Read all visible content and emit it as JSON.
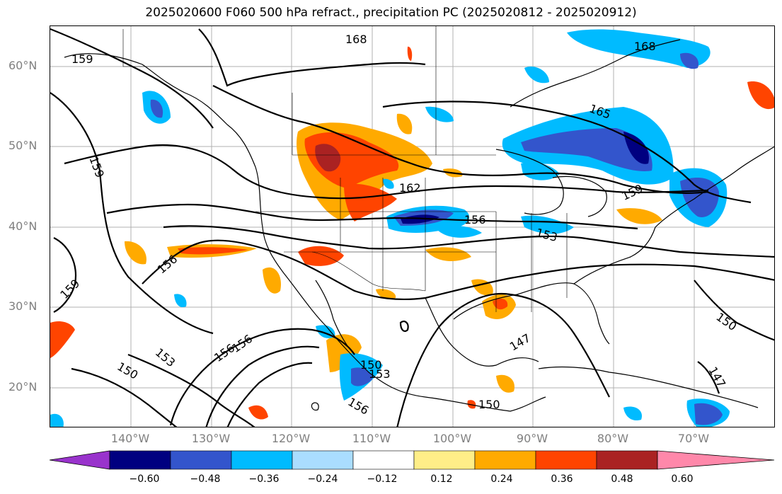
{
  "title": "2025020600 F060 500 hPa refract., precipitation PC (2025020812 - 2025020912)",
  "lat_labels": [
    "60°N",
    "50°N",
    "40°N",
    "30°N",
    "20°N"
  ],
  "lon_labels": [
    "140°W",
    "130°W",
    "120°W",
    "110°W",
    "100°W",
    "90°W",
    "80°W",
    "70°W"
  ],
  "contour_labels": [
    "168",
    "168",
    "159",
    "159",
    "165",
    "162",
    "159",
    "156",
    "153",
    "156",
    "159",
    "150",
    "147",
    "153",
    "150",
    "156",
    "156",
    "150",
    "153",
    "156",
    "150",
    "147"
  ],
  "colorbar": {
    "colors": [
      "#9933cc",
      "#000080",
      "#3355cc",
      "#00bbff",
      "#aaddff",
      "#ffffff",
      "#ffee88",
      "#ffaa00",
      "#ff4400",
      "#aa2222",
      "#ff88aa"
    ],
    "ticks": [
      "−0.60",
      "−0.48",
      "−0.36",
      "−0.24",
      "−0.12",
      "0.12",
      "0.24",
      "0.36",
      "0.48",
      "0.60"
    ]
  }
}
